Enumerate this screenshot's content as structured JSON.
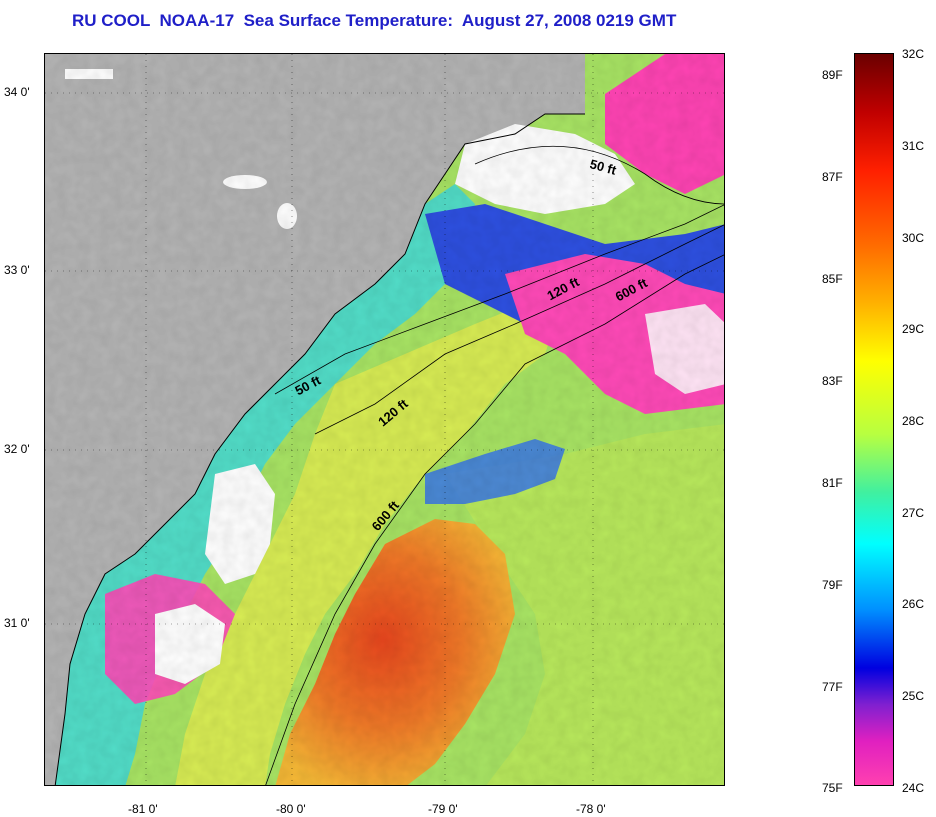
{
  "title": "RU COOL  NOAA-17  Sea Surface Temperature:  August 27, 2008 0219 GMT",
  "map": {
    "latitude_labels": [
      "34 0'",
      "33 0'",
      "32 0'",
      "31 0'"
    ],
    "longitude_labels": [
      "-81 0'",
      "-80 0'",
      "-79 0'",
      "-78 0'"
    ],
    "contour_labels": [
      "50 ft",
      "120 ft",
      "600 ft",
      "50 ft",
      "120 ft",
      "600 ft"
    ],
    "colors": {
      "land": "#b4b4b4",
      "cloud": "#ffffff",
      "warm_core": "#e0502a",
      "orange": "#f5a030",
      "yellow": "#e8f040",
      "green": "#a6e060",
      "cyan": "#40e0d0",
      "blue": "#2050e0",
      "magenta": "#ff40b0"
    }
  },
  "colorbar": {
    "fahrenheit_labels": [
      "89F",
      "87F",
      "85F",
      "83F",
      "81F",
      "79F",
      "77F",
      "75F"
    ],
    "celsius_labels": [
      "32C",
      "31C",
      "30C",
      "29C",
      "28C",
      "27C",
      "26C",
      "25C",
      "24C"
    ],
    "range_c": [
      24,
      32
    ],
    "range_f": [
      75,
      89.6
    ]
  }
}
